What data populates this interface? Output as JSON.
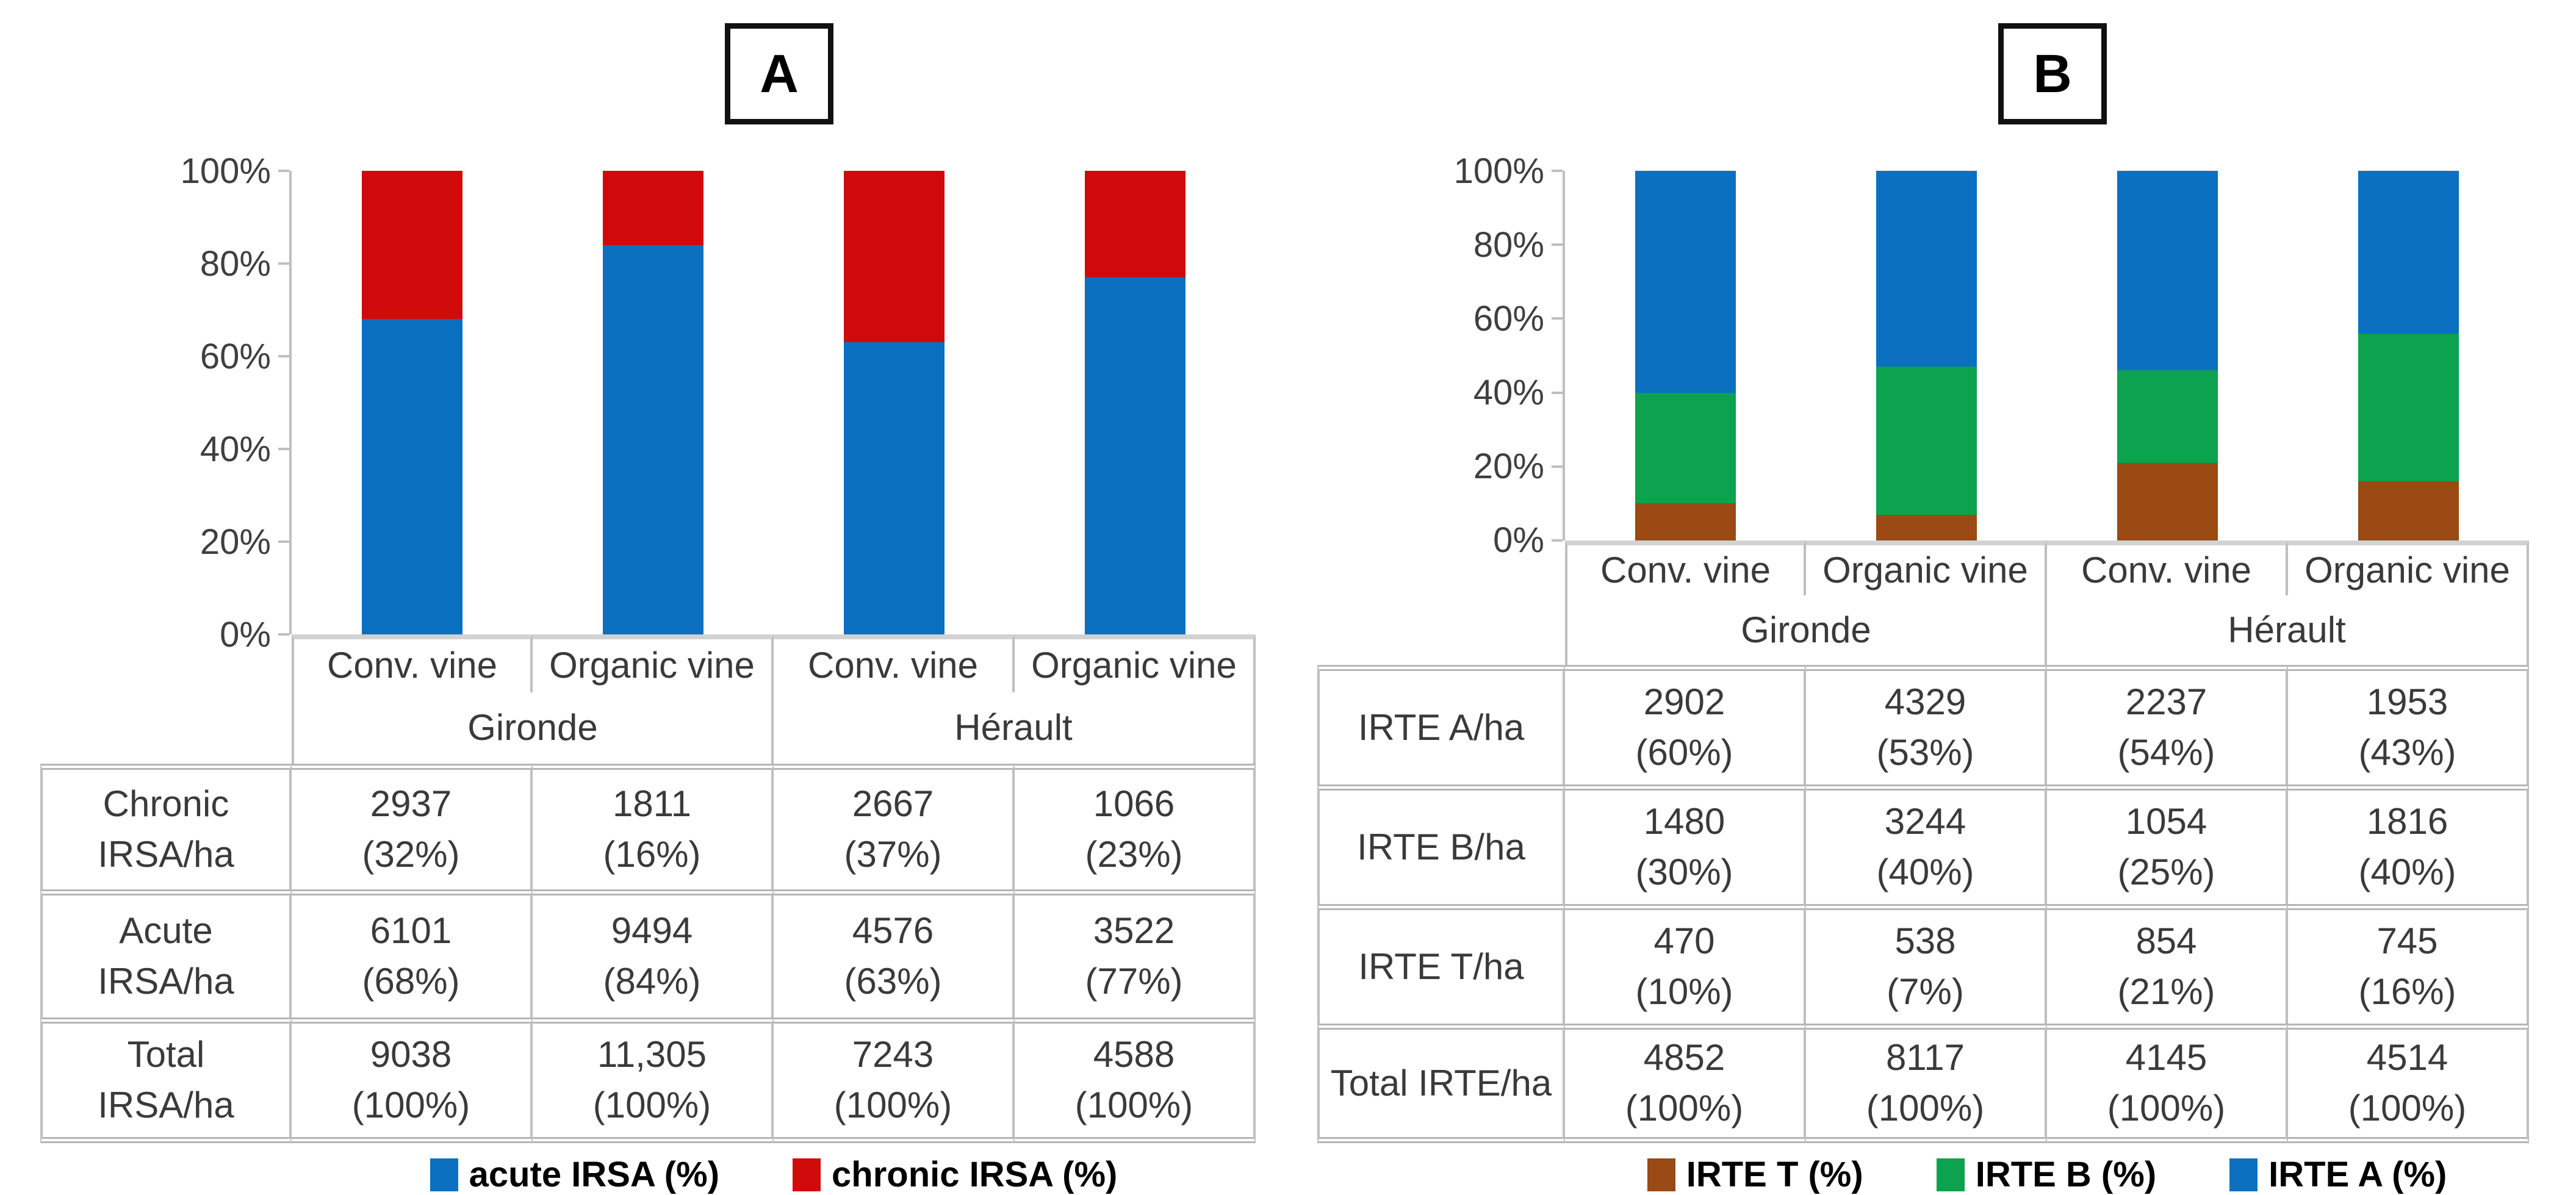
{
  "panels": [
    {
      "label": "A",
      "y_ticks": [
        "100%",
        "80%",
        "60%",
        "40%",
        "20%",
        "0%"
      ],
      "categories": [
        "Conv. vine",
        "Organic vine",
        "Conv. vine",
        "Organic vine"
      ],
      "regions": [
        "Gironde",
        "Hérault"
      ],
      "table": {
        "rows": [
          {
            "label_lines": [
              "Chronic",
              "IRSA/ha"
            ],
            "cells": [
              [
                "2937",
                "(32%)"
              ],
              [
                "1811",
                "(16%)"
              ],
              [
                "2667",
                "(37%)"
              ],
              [
                "1066",
                "(23%)"
              ]
            ]
          },
          {
            "label_lines": [
              "Acute",
              "IRSA/ha"
            ],
            "cells": [
              [
                "6101",
                "(68%)"
              ],
              [
                "9494",
                "(84%)"
              ],
              [
                "4576",
                "(63%)"
              ],
              [
                "3522",
                "(77%)"
              ]
            ]
          },
          {
            "label_lines": [
              "Total",
              "IRSA/ha"
            ],
            "cells": [
              [
                "9038",
                "(100%)"
              ],
              [
                "11,305",
                "(100%)"
              ],
              [
                "7243",
                "(100%)"
              ],
              [
                "4588",
                "(100%)"
              ]
            ]
          }
        ]
      },
      "legend": [
        {
          "label": "acute IRSA (%)",
          "color": "#0B70C0"
        },
        {
          "label": "chronic IRSA (%)",
          "color": "#D00A0A"
        }
      ]
    },
    {
      "label": "B",
      "y_ticks": [
        "100%",
        "80%",
        "60%",
        "40%",
        "20%",
        "0%"
      ],
      "categories": [
        "Conv. vine",
        "Organic vine",
        "Conv. vine",
        "Organic vine"
      ],
      "regions": [
        "Gironde",
        "Hérault"
      ],
      "table": {
        "rows": [
          {
            "label_lines": [
              "IRTE A/ha"
            ],
            "cells": [
              [
                "2902",
                "(60%)"
              ],
              [
                "4329",
                "(53%)"
              ],
              [
                "2237",
                "(54%)"
              ],
              [
                "1953",
                "(43%)"
              ]
            ]
          },
          {
            "label_lines": [
              "IRTE B/ha"
            ],
            "cells": [
              [
                "1480",
                "(30%)"
              ],
              [
                "3244",
                "(40%)"
              ],
              [
                "1054",
                "(25%)"
              ],
              [
                "1816",
                "(40%)"
              ]
            ]
          },
          {
            "label_lines": [
              "IRTE T/ha"
            ],
            "cells": [
              [
                "470",
                "(10%)"
              ],
              [
                "538",
                "(7%)"
              ],
              [
                "854",
                "(21%)"
              ],
              [
                "745",
                "(16%)"
              ]
            ]
          },
          {
            "label_lines": [
              "Total IRTE/ha"
            ],
            "cells": [
              [
                "4852",
                "(100%)"
              ],
              [
                "8117",
                "(100%)"
              ],
              [
                "4145",
                "(100%)"
              ],
              [
                "4514",
                "(100%)"
              ]
            ]
          }
        ]
      },
      "legend": [
        {
          "label": "IRTE T (%)",
          "color": "#9A4A12"
        },
        {
          "label": "IRTE B (%)",
          "color": "#0CA24E"
        },
        {
          "label": "IRTE A (%)",
          "color": "#0B70C0"
        }
      ]
    }
  ],
  "chart_data": [
    {
      "type": "bar",
      "stacked": true,
      "percent_stacked": true,
      "title": "A",
      "categories": [
        "Gironde Conv. vine",
        "Gironde Organic vine",
        "Hérault Conv. vine",
        "Hérault Organic vine"
      ],
      "series": [
        {
          "name": "acute IRSA (%)",
          "color": "#0B70C0",
          "values_pct": [
            68,
            84,
            63,
            77
          ],
          "values_irsa_per_ha": [
            6101,
            9494,
            4576,
            3522
          ]
        },
        {
          "name": "chronic IRSA (%)",
          "color": "#D00A0A",
          "values_pct": [
            32,
            16,
            37,
            23
          ],
          "values_irsa_per_ha": [
            2937,
            1811,
            2667,
            1066
          ]
        }
      ],
      "totals_irsa_per_ha": [
        9038,
        11305,
        7243,
        4588
      ],
      "xlabel": "",
      "ylabel": "",
      "ylim": [
        0,
        100
      ],
      "yticks": [
        "0%",
        "20%",
        "40%",
        "60%",
        "80%",
        "100%"
      ],
      "grid": false,
      "legend_position": "bottom"
    },
    {
      "type": "bar",
      "stacked": true,
      "percent_stacked": true,
      "title": "B",
      "categories": [
        "Gironde Conv. vine",
        "Gironde Organic vine",
        "Hérault Conv. vine",
        "Hérault Organic vine"
      ],
      "series": [
        {
          "name": "IRTE T (%)",
          "color": "#9A4A12",
          "values_pct": [
            10,
            7,
            21,
            16
          ],
          "values_irte_per_ha": [
            470,
            538,
            854,
            745
          ]
        },
        {
          "name": "IRTE B (%)",
          "color": "#0CA24E",
          "values_pct": [
            30,
            40,
            25,
            40
          ],
          "values_irte_per_ha": [
            1480,
            3244,
            1054,
            1816
          ]
        },
        {
          "name": "IRTE A (%)",
          "color": "#0B70C0",
          "values_pct": [
            60,
            53,
            54,
            43
          ],
          "values_irte_per_ha": [
            2902,
            4329,
            2237,
            1953
          ]
        }
      ],
      "totals_irte_per_ha": [
        4852,
        8117,
        4145,
        4514
      ],
      "xlabel": "",
      "ylabel": "",
      "ylim": [
        0,
        100
      ],
      "yticks": [
        "0%",
        "20%",
        "40%",
        "60%",
        "80%",
        "100%"
      ],
      "grid": false,
      "legend_position": "bottom"
    }
  ]
}
